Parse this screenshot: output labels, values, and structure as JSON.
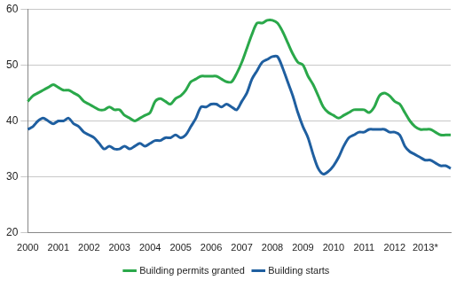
{
  "chart_data": {
    "type": "line",
    "categories": [
      "2000",
      null,
      null,
      null,
      null,
      null,
      "2001",
      null,
      null,
      null,
      null,
      null,
      "2002",
      null,
      null,
      null,
      null,
      null,
      "2003",
      null,
      null,
      null,
      null,
      null,
      "2004",
      null,
      null,
      null,
      null,
      null,
      "2005",
      null,
      null,
      null,
      null,
      null,
      "2006",
      null,
      null,
      null,
      null,
      null,
      "2007",
      null,
      null,
      null,
      null,
      null,
      "2008",
      null,
      null,
      null,
      null,
      null,
      "2009",
      null,
      null,
      null,
      null,
      null,
      "2010",
      null,
      null,
      null,
      null,
      null,
      "2011",
      null,
      null,
      null,
      null,
      null,
      "2012",
      null,
      null,
      null,
      null,
      null,
      "2013*",
      null,
      null,
      null,
      null,
      null
    ],
    "series": [
      {
        "name": "Building permits granted",
        "color": "#2aa84a",
        "values": [
          43.5,
          44.5,
          45,
          45.5,
          46,
          46.5,
          46,
          45.5,
          45.5,
          45,
          44.5,
          43.5,
          43,
          42.5,
          42,
          42,
          42.5,
          42,
          42,
          41,
          40.5,
          40,
          40.5,
          41,
          41.5,
          43.5,
          44,
          43.5,
          43,
          44,
          44.5,
          45.5,
          47,
          47.5,
          48,
          48,
          48,
          48,
          47.5,
          47,
          47,
          48.5,
          50.5,
          53,
          55.5,
          57.5,
          57.5,
          58,
          58,
          57.5,
          56,
          54,
          52,
          50.5,
          50,
          48,
          46.5,
          44.5,
          42.5,
          41.5,
          41,
          40.5,
          41,
          41.5,
          42,
          42,
          42,
          41.5,
          42.5,
          44.5,
          45,
          44.5,
          43.5,
          43,
          41.5,
          40,
          39,
          38.5,
          38.5,
          38.5,
          38,
          37.5,
          37.5,
          37.5
        ]
      },
      {
        "name": "Building starts",
        "color": "#1f5fa0",
        "values": [
          38.5,
          39,
          40,
          40.5,
          40,
          39.5,
          40,
          40,
          40.5,
          39.5,
          39,
          38,
          37.5,
          37,
          36,
          35,
          35.5,
          35,
          35,
          35.5,
          35,
          35.5,
          36,
          35.5,
          36,
          36.5,
          36.5,
          37,
          37,
          37.5,
          37,
          37.5,
          39,
          40.5,
          42.5,
          42.5,
          43,
          43,
          42.5,
          43,
          42.5,
          42,
          43.5,
          45,
          47.5,
          49,
          50.5,
          51,
          51.5,
          51.5,
          49.5,
          47,
          44.5,
          41.5,
          39,
          37,
          34,
          31.5,
          30.5,
          31,
          32,
          33.5,
          35.5,
          37,
          37.5,
          38,
          38,
          38.5,
          38.5,
          38.5,
          38.5,
          38,
          38,
          37.5,
          35.5,
          34.5,
          34,
          33.5,
          33,
          33,
          32.5,
          32,
          32,
          31.5
        ]
      }
    ],
    "ylim": [
      20,
      60
    ],
    "yticks": [
      20,
      30,
      40,
      50,
      60
    ],
    "grid": true,
    "legend": "bottom"
  }
}
